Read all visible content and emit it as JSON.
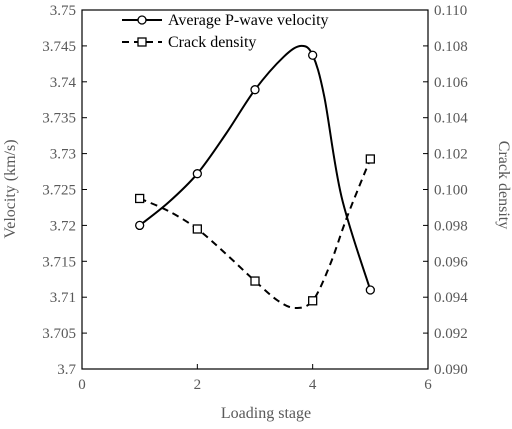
{
  "chart_data": {
    "type": "line",
    "xlabel": "Loading stage",
    "ylabel_left": "Velocity (km/s)",
    "ylabel_right": "Crack density",
    "xlim": [
      0,
      6
    ],
    "ylim_left": [
      3.7,
      3.75
    ],
    "ylim_right": [
      0.09,
      0.11
    ],
    "x_ticks": [
      "0",
      "2",
      "4",
      "6"
    ],
    "y_left_ticks": [
      "3.7",
      "3.705",
      "3.71",
      "3.715",
      "3.72",
      "3.725",
      "3.73",
      "3.735",
      "3.74",
      "3.745",
      "3.75"
    ],
    "y_right_ticks": [
      "0.090",
      "0.092",
      "0.094",
      "0.096",
      "0.098",
      "0.100",
      "0.102",
      "0.104",
      "0.106",
      "0.108",
      "0.110"
    ],
    "grid": false,
    "legend_position": "top-left",
    "series": [
      {
        "name": "Average P-wave velocity",
        "axis": "left",
        "line_style": "solid",
        "marker": "circle",
        "x": [
          1,
          2,
          3,
          4,
          5
        ],
        "y": [
          3.72,
          3.7272,
          3.7389,
          3.7437,
          3.711
        ],
        "curve_x": [
          1,
          1.5,
          2,
          2.5,
          3,
          3.5,
          3.8,
          4,
          4.2,
          4.5,
          5
        ],
        "curve_y": [
          3.72,
          3.7232,
          3.7272,
          3.7328,
          3.7389,
          3.7435,
          3.745,
          3.7437,
          3.738,
          3.724,
          3.711
        ]
      },
      {
        "name": "Crack density",
        "axis": "right",
        "line_style": "dashed",
        "marker": "square",
        "x": [
          1,
          2,
          3,
          4,
          5
        ],
        "y": [
          0.0995,
          0.0978,
          0.0949,
          0.0938,
          0.1017
        ],
        "curve_x": [
          1,
          1.5,
          2,
          2.5,
          3,
          3.4,
          3.7,
          4,
          4.3,
          4.6,
          5
        ],
        "curve_y": [
          0.0995,
          0.0988,
          0.0978,
          0.0964,
          0.0949,
          0.0938,
          0.0934,
          0.0938,
          0.0958,
          0.0985,
          0.1017
        ]
      }
    ]
  }
}
